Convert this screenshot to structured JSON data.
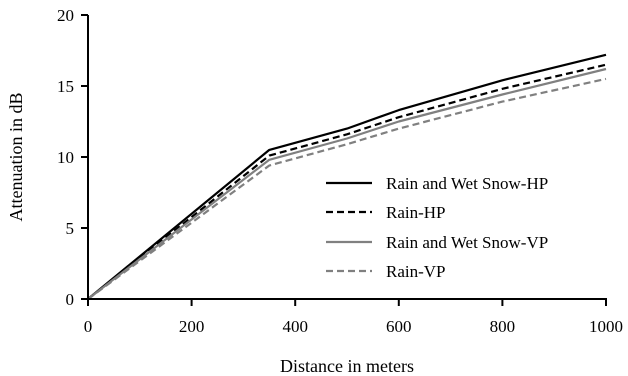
{
  "chart_data": {
    "type": "line",
    "title": "",
    "xlabel": "Distance in meters",
    "ylabel": "Attenuation in dB",
    "xlim": [
      0,
      1000
    ],
    "ylim": [
      0,
      20
    ],
    "xticks": [
      "0",
      "200",
      "400",
      "600",
      "800",
      "1000"
    ],
    "yticks": [
      "0",
      "5",
      "10",
      "15",
      "20"
    ],
    "grid": false,
    "legend_position": "right",
    "series": [
      {
        "name": "Rain and Wet Snow-HP",
        "color": "#000000",
        "dash": "solid",
        "points": [
          [
            0,
            0
          ],
          [
            350,
            10.5
          ],
          [
            500,
            12.0
          ],
          [
            600,
            13.3
          ],
          [
            800,
            15.4
          ],
          [
            1000,
            17.2
          ]
        ]
      },
      {
        "name": "Rain-HP",
        "color": "#000000",
        "dash": "dashed",
        "points": [
          [
            0,
            0
          ],
          [
            350,
            10.1
          ],
          [
            500,
            11.6
          ],
          [
            600,
            12.8
          ],
          [
            800,
            14.8
          ],
          [
            1000,
            16.5
          ]
        ]
      },
      {
        "name": "Rain and Wet Snow-VP",
        "color": "#808080",
        "dash": "solid",
        "points": [
          [
            0,
            0
          ],
          [
            350,
            9.8
          ],
          [
            500,
            11.3
          ],
          [
            600,
            12.5
          ],
          [
            800,
            14.4
          ],
          [
            1000,
            16.2
          ]
        ]
      },
      {
        "name": "Rain-VP",
        "color": "#808080",
        "dash": "dashed",
        "points": [
          [
            0,
            0
          ],
          [
            350,
            9.4
          ],
          [
            500,
            10.9
          ],
          [
            600,
            12.0
          ],
          [
            800,
            13.9
          ],
          [
            1000,
            15.5
          ]
        ]
      }
    ]
  }
}
